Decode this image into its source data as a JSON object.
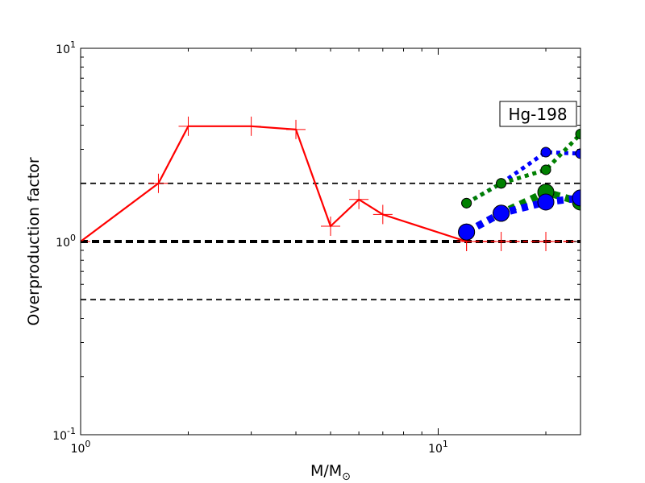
{
  "chart_data": {
    "type": "line",
    "title": "",
    "xlabel": "M/M",
    "xlabel_subscript": "⊙",
    "ylabel": "Overproduction factor",
    "xscale": "log",
    "yscale": "log",
    "xlim": [
      1,
      25
    ],
    "ylim": [
      0.1,
      10
    ],
    "xticks": [
      {
        "value": 1,
        "base": "10",
        "exp": "0"
      },
      {
        "value": 10,
        "base": "10",
        "exp": "1"
      }
    ],
    "yticks": [
      {
        "value": 0.1,
        "base": "10",
        "exp": "-1"
      },
      {
        "value": 1,
        "base": "10",
        "exp": "0"
      },
      {
        "value": 10,
        "base": "10",
        "exp": "1"
      }
    ],
    "annotation": "Hg-198",
    "reference_lines": [
      {
        "y": 2.0,
        "style": "dashed-thin",
        "color": "#000000"
      },
      {
        "y": 1.0,
        "style": "dashed-thick",
        "color": "#000000"
      },
      {
        "y": 0.5,
        "style": "dashed-thin",
        "color": "#000000"
      }
    ],
    "series": [
      {
        "color": "#ff0000",
        "line": "solid",
        "marker": "plus",
        "x": [
          1.0,
          1.65,
          2.0,
          3.0,
          4.0,
          5.0,
          6.0,
          7.0,
          12.0
        ],
        "y": [
          1.0,
          2.0,
          3.95,
          3.95,
          3.8,
          1.2,
          1.65,
          1.38,
          1.0
        ]
      },
      {
        "color": "#ff0000",
        "line": "dashed",
        "marker": "plus",
        "x": [
          12.0,
          15.0,
          20.0,
          25.0
        ],
        "y": [
          1.0,
          1.0,
          1.0,
          1.0
        ]
      },
      {
        "color": "#0000ff",
        "line": "dotted-thin",
        "marker": "circle-small",
        "x": [
          12.0,
          15.0,
          20.0,
          25.0
        ],
        "y": [
          1.58,
          2.0,
          2.9,
          2.85
        ]
      },
      {
        "color": "#008000",
        "line": "dotted-thin",
        "marker": "circle-small",
        "x": [
          12.0,
          15.0,
          20.0,
          25.0
        ],
        "y": [
          1.58,
          2.0,
          2.35,
          3.6
        ]
      },
      {
        "color": "#008000",
        "line": "dotted-thick",
        "marker": "circle-large",
        "x": [
          12.0,
          15.0,
          20.0,
          25.0
        ],
        "y": [
          1.12,
          1.4,
          1.8,
          1.6
        ]
      },
      {
        "color": "#0000ff",
        "line": "dotted-thick",
        "marker": "circle-large",
        "x": [
          12.0,
          15.0,
          20.0,
          25.0
        ],
        "y": [
          1.12,
          1.4,
          1.6,
          1.68
        ]
      }
    ]
  }
}
